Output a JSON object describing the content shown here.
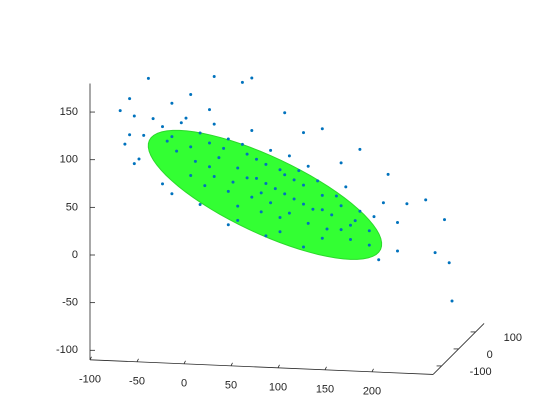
{
  "chart_data": {
    "type": "scatter3",
    "x": [
      -65,
      -95,
      -85,
      -80,
      -60,
      -70,
      -85,
      -90,
      -75,
      -80,
      5,
      35,
      45,
      -20,
      -40,
      80,
      120,
      160,
      190,
      210,
      230,
      250,
      255,
      258,
      240,
      200,
      180,
      150,
      100,
      60,
      20,
      -10,
      -50,
      -40,
      0,
      100,
      140,
      185,
      200,
      170,
      120,
      75,
      30,
      -20,
      -50,
      -40,
      -30,
      -20,
      -10,
      0,
      10,
      20,
      30,
      40,
      50,
      60,
      70,
      80,
      90,
      100,
      110,
      120,
      130,
      140,
      150,
      160,
      170,
      -35,
      -15,
      5,
      25,
      45,
      65,
      85,
      105,
      125,
      -45,
      15,
      35,
      55,
      75,
      95,
      115,
      135,
      155,
      -25,
      5,
      45,
      65,
      85,
      105,
      145,
      175,
      0,
      20,
      40,
      60,
      80,
      100,
      120,
      140,
      30,
      -5,
      55,
      75,
      90,
      50
    ],
    "y": [
      160,
      125,
      138,
      120,
      118,
      100,
      100,
      90,
      75,
      70,
      165,
      160,
      165,
      145,
      135,
      130,
      115,
      95,
      70,
      40,
      45,
      25,
      -20,
      -60,
      -10,
      -10,
      -20,
      0,
      -10,
      0,
      10,
      30,
      50,
      40,
      130,
      110,
      80,
      40,
      20,
      -5,
      0,
      5,
      15,
      60,
      110,
      100,
      115,
      90,
      105,
      95,
      80,
      100,
      70,
      85,
      60,
      75,
      50,
      65,
      40,
      55,
      30,
      45,
      25,
      35,
      15,
      30,
      10,
      85,
      75,
      60,
      55,
      40,
      35,
      25,
      15,
      10,
      95,
      90,
      95,
      45,
      20,
      70,
      60,
      45,
      20,
      120,
      115,
      110,
      90,
      85,
      75,
      55,
      25,
      70,
      45,
      60,
      55,
      45,
      35,
      30,
      10,
      30,
      50,
      25,
      70,
      60,
      80
    ],
    "color": "#0072bd",
    "ellipse": {
      "center": [
        59,
        43
      ],
      "major": [
        123,
        -52
      ],
      "minor": [
        -17,
        -37
      ],
      "color": "#33ff33"
    },
    "xlim": [
      -100,
      265
    ],
    "ylim": [
      -110,
      180
    ],
    "zlim": [
      -150,
      150
    ],
    "xticks": [
      -100,
      -50,
      0,
      50,
      100,
      150,
      200
    ],
    "yticks": [
      -100,
      -50,
      0,
      50,
      100,
      150
    ],
    "zticks": [
      -100,
      0,
      100
    ]
  }
}
